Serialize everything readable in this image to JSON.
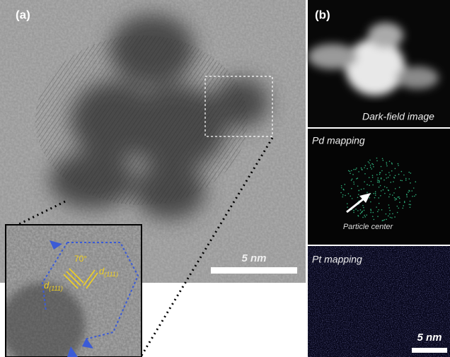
{
  "panel_a": {
    "label": "(a)",
    "scale_bar": "5 nm",
    "inset": {
      "angle": "70°",
      "spacing_left": {
        "symbol": "d",
        "subscript": "(111)"
      },
      "spacing_right": {
        "symbol": "d",
        "subscript": "(111)"
      }
    }
  },
  "panel_b": {
    "label": "(b)",
    "subpanels": [
      {
        "caption": "Dark-field image"
      },
      {
        "caption": "Pd mapping",
        "annotation": "Particle center"
      },
      {
        "caption": "Pt mapping"
      }
    ],
    "scale_bar": "5 nm"
  }
}
